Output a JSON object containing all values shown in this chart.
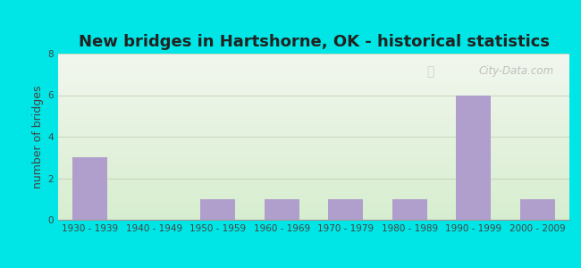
{
  "title": "New bridges in Hartshorne, OK - historical statistics",
  "categories": [
    "1930 - 1939",
    "1940 - 1949",
    "1950 - 1959",
    "1960 - 1969",
    "1970 - 1979",
    "1980 - 1989",
    "1990 - 1999",
    "2000 - 2009"
  ],
  "values": [
    3,
    0,
    1,
    1,
    1,
    1,
    6,
    1
  ],
  "bar_color": "#b09fcc",
  "ylabel": "number of bridges",
  "ylim": [
    0,
    8
  ],
  "yticks": [
    0,
    2,
    4,
    6,
    8
  ],
  "background_outer": "#00e5e5",
  "background_inner_top": "#f2f6ee",
  "background_inner_bottom": "#d6edce",
  "grid_color": "#c8d8be",
  "title_fontsize": 13,
  "axis_label_fontsize": 9,
  "tick_fontsize": 7.5,
  "watermark": "City-Data.com"
}
